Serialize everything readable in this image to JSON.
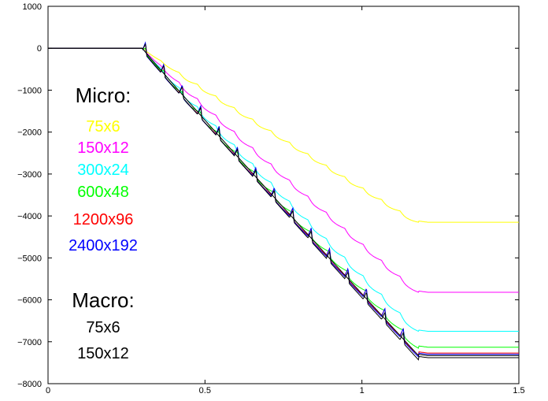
{
  "chart_data": {
    "type": "line",
    "title": "",
    "xlabel": "",
    "ylabel": "",
    "xlim": [
      0,
      1.5
    ],
    "ylim": [
      -8000,
      1000
    ],
    "xticks": [
      "0",
      "0.5",
      "1",
      "1.5"
    ],
    "yticks": [
      "1000",
      "0",
      "−1000",
      "−2000",
      "−3000",
      "−4000",
      "−5000",
      "−6000",
      "−7000",
      "−8000"
    ],
    "grid": false,
    "legend": {
      "position": "left",
      "micro_title": "Micro:",
      "macro_title": "Macro:"
    },
    "series": [
      {
        "name": "75x6",
        "group": "micro",
        "color": "#ffff00",
        "final": -4150,
        "ripple": 140,
        "spike": 0
      },
      {
        "name": "150x12",
        "group": "micro",
        "color": "#ff00ff",
        "final": -5820,
        "ripple": 170,
        "spike": 0
      },
      {
        "name": "300x24",
        "group": "micro",
        "color": "#00ffff",
        "final": -6750,
        "ripple": 200,
        "spike": 0
      },
      {
        "name": "600x48",
        "group": "micro",
        "color": "#00ff00",
        "final": -7130,
        "ripple": 180,
        "spike": 120
      },
      {
        "name": "1200x96",
        "group": "micro",
        "color": "#ff0000",
        "final": -7270,
        "ripple": 60,
        "spike": 260
      },
      {
        "name": "2400x192",
        "group": "micro",
        "color": "#0000ff",
        "final": -7300,
        "ripple": 30,
        "spike": 300
      },
      {
        "name": "75x6",
        "group": "macro",
        "color": "#000000",
        "final": -7380,
        "ripple": 0,
        "spike": 250
      },
      {
        "name": "150x12",
        "group": "macro",
        "color": "#000000",
        "final": -7330,
        "ripple": 0,
        "spike": 0
      }
    ],
    "shape": {
      "flat_until": 0.3,
      "descent_end": 1.18,
      "x_end": 1.5,
      "steps": 15
    }
  }
}
